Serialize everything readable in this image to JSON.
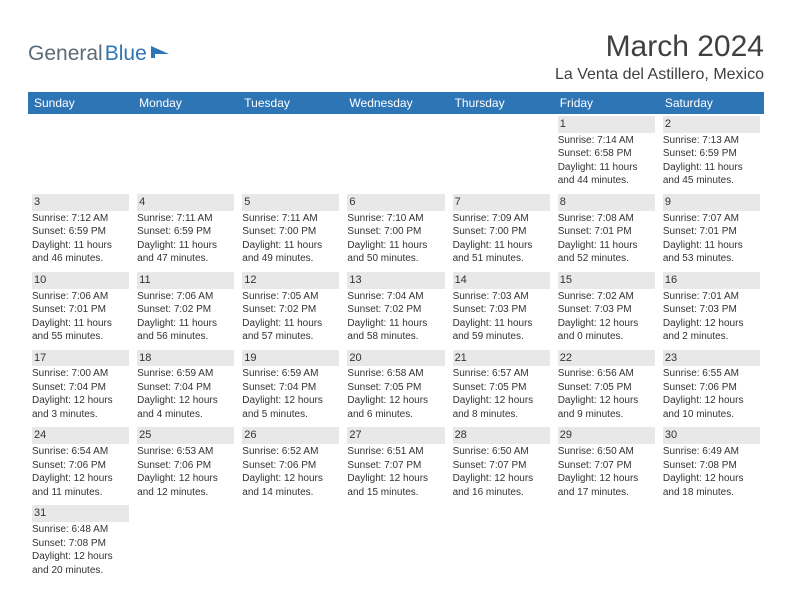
{
  "logo": {
    "part1": "General",
    "part2": "Blue"
  },
  "title": "March 2024",
  "location": "La Venta del Astillero, Mexico",
  "colors": {
    "header_bg": "#2e75b6",
    "header_text": "#ffffff",
    "daynum_bg": "#e8e8e8",
    "text": "#333333",
    "logo_gray": "#5a6b7a",
    "logo_blue": "#2e75b6"
  },
  "weekdays": [
    "Sunday",
    "Monday",
    "Tuesday",
    "Wednesday",
    "Thursday",
    "Friday",
    "Saturday"
  ],
  "weeks": [
    [
      {
        "n": "",
        "sr": "",
        "ss": "",
        "dl": ""
      },
      {
        "n": "",
        "sr": "",
        "ss": "",
        "dl": ""
      },
      {
        "n": "",
        "sr": "",
        "ss": "",
        "dl": ""
      },
      {
        "n": "",
        "sr": "",
        "ss": "",
        "dl": ""
      },
      {
        "n": "",
        "sr": "",
        "ss": "",
        "dl": ""
      },
      {
        "n": "1",
        "sr": "Sunrise: 7:14 AM",
        "ss": "Sunset: 6:58 PM",
        "dl": "Daylight: 11 hours and 44 minutes."
      },
      {
        "n": "2",
        "sr": "Sunrise: 7:13 AM",
        "ss": "Sunset: 6:59 PM",
        "dl": "Daylight: 11 hours and 45 minutes."
      }
    ],
    [
      {
        "n": "3",
        "sr": "Sunrise: 7:12 AM",
        "ss": "Sunset: 6:59 PM",
        "dl": "Daylight: 11 hours and 46 minutes."
      },
      {
        "n": "4",
        "sr": "Sunrise: 7:11 AM",
        "ss": "Sunset: 6:59 PM",
        "dl": "Daylight: 11 hours and 47 minutes."
      },
      {
        "n": "5",
        "sr": "Sunrise: 7:11 AM",
        "ss": "Sunset: 7:00 PM",
        "dl": "Daylight: 11 hours and 49 minutes."
      },
      {
        "n": "6",
        "sr": "Sunrise: 7:10 AM",
        "ss": "Sunset: 7:00 PM",
        "dl": "Daylight: 11 hours and 50 minutes."
      },
      {
        "n": "7",
        "sr": "Sunrise: 7:09 AM",
        "ss": "Sunset: 7:00 PM",
        "dl": "Daylight: 11 hours and 51 minutes."
      },
      {
        "n": "8",
        "sr": "Sunrise: 7:08 AM",
        "ss": "Sunset: 7:01 PM",
        "dl": "Daylight: 11 hours and 52 minutes."
      },
      {
        "n": "9",
        "sr": "Sunrise: 7:07 AM",
        "ss": "Sunset: 7:01 PM",
        "dl": "Daylight: 11 hours and 53 minutes."
      }
    ],
    [
      {
        "n": "10",
        "sr": "Sunrise: 7:06 AM",
        "ss": "Sunset: 7:01 PM",
        "dl": "Daylight: 11 hours and 55 minutes."
      },
      {
        "n": "11",
        "sr": "Sunrise: 7:06 AM",
        "ss": "Sunset: 7:02 PM",
        "dl": "Daylight: 11 hours and 56 minutes."
      },
      {
        "n": "12",
        "sr": "Sunrise: 7:05 AM",
        "ss": "Sunset: 7:02 PM",
        "dl": "Daylight: 11 hours and 57 minutes."
      },
      {
        "n": "13",
        "sr": "Sunrise: 7:04 AM",
        "ss": "Sunset: 7:02 PM",
        "dl": "Daylight: 11 hours and 58 minutes."
      },
      {
        "n": "14",
        "sr": "Sunrise: 7:03 AM",
        "ss": "Sunset: 7:03 PM",
        "dl": "Daylight: 11 hours and 59 minutes."
      },
      {
        "n": "15",
        "sr": "Sunrise: 7:02 AM",
        "ss": "Sunset: 7:03 PM",
        "dl": "Daylight: 12 hours and 0 minutes."
      },
      {
        "n": "16",
        "sr": "Sunrise: 7:01 AM",
        "ss": "Sunset: 7:03 PM",
        "dl": "Daylight: 12 hours and 2 minutes."
      }
    ],
    [
      {
        "n": "17",
        "sr": "Sunrise: 7:00 AM",
        "ss": "Sunset: 7:04 PM",
        "dl": "Daylight: 12 hours and 3 minutes."
      },
      {
        "n": "18",
        "sr": "Sunrise: 6:59 AM",
        "ss": "Sunset: 7:04 PM",
        "dl": "Daylight: 12 hours and 4 minutes."
      },
      {
        "n": "19",
        "sr": "Sunrise: 6:59 AM",
        "ss": "Sunset: 7:04 PM",
        "dl": "Daylight: 12 hours and 5 minutes."
      },
      {
        "n": "20",
        "sr": "Sunrise: 6:58 AM",
        "ss": "Sunset: 7:05 PM",
        "dl": "Daylight: 12 hours and 6 minutes."
      },
      {
        "n": "21",
        "sr": "Sunrise: 6:57 AM",
        "ss": "Sunset: 7:05 PM",
        "dl": "Daylight: 12 hours and 8 minutes."
      },
      {
        "n": "22",
        "sr": "Sunrise: 6:56 AM",
        "ss": "Sunset: 7:05 PM",
        "dl": "Daylight: 12 hours and 9 minutes."
      },
      {
        "n": "23",
        "sr": "Sunrise: 6:55 AM",
        "ss": "Sunset: 7:06 PM",
        "dl": "Daylight: 12 hours and 10 minutes."
      }
    ],
    [
      {
        "n": "24",
        "sr": "Sunrise: 6:54 AM",
        "ss": "Sunset: 7:06 PM",
        "dl": "Daylight: 12 hours and 11 minutes."
      },
      {
        "n": "25",
        "sr": "Sunrise: 6:53 AM",
        "ss": "Sunset: 7:06 PM",
        "dl": "Daylight: 12 hours and 12 minutes."
      },
      {
        "n": "26",
        "sr": "Sunrise: 6:52 AM",
        "ss": "Sunset: 7:06 PM",
        "dl": "Daylight: 12 hours and 14 minutes."
      },
      {
        "n": "27",
        "sr": "Sunrise: 6:51 AM",
        "ss": "Sunset: 7:07 PM",
        "dl": "Daylight: 12 hours and 15 minutes."
      },
      {
        "n": "28",
        "sr": "Sunrise: 6:50 AM",
        "ss": "Sunset: 7:07 PM",
        "dl": "Daylight: 12 hours and 16 minutes."
      },
      {
        "n": "29",
        "sr": "Sunrise: 6:50 AM",
        "ss": "Sunset: 7:07 PM",
        "dl": "Daylight: 12 hours and 17 minutes."
      },
      {
        "n": "30",
        "sr": "Sunrise: 6:49 AM",
        "ss": "Sunset: 7:08 PM",
        "dl": "Daylight: 12 hours and 18 minutes."
      }
    ],
    [
      {
        "n": "31",
        "sr": "Sunrise: 6:48 AM",
        "ss": "Sunset: 7:08 PM",
        "dl": "Daylight: 12 hours and 20 minutes."
      },
      {
        "n": "",
        "sr": "",
        "ss": "",
        "dl": ""
      },
      {
        "n": "",
        "sr": "",
        "ss": "",
        "dl": ""
      },
      {
        "n": "",
        "sr": "",
        "ss": "",
        "dl": ""
      },
      {
        "n": "",
        "sr": "",
        "ss": "",
        "dl": ""
      },
      {
        "n": "",
        "sr": "",
        "ss": "",
        "dl": ""
      },
      {
        "n": "",
        "sr": "",
        "ss": "",
        "dl": ""
      }
    ]
  ]
}
